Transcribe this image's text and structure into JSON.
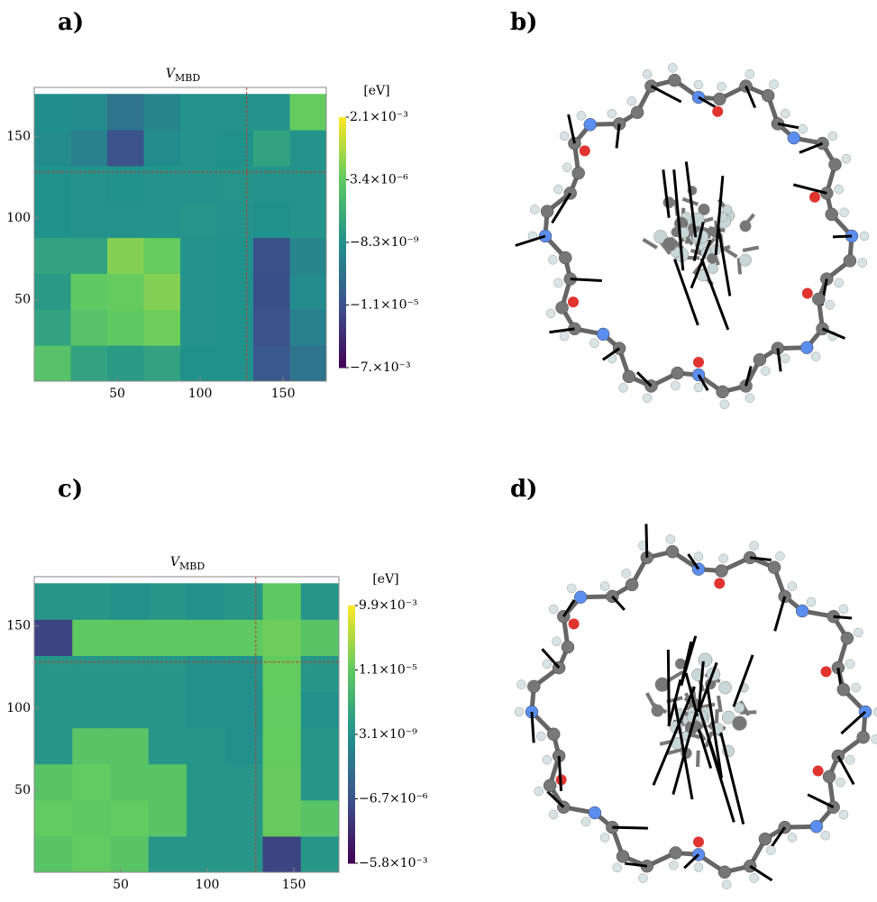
{
  "panel_labels": [
    "a)",
    "b)",
    "c)",
    "d)"
  ],
  "chart_data": [
    {
      "type": "heatmap",
      "title": "V",
      "title_sub": "MBD",
      "colorbar_label": "[eV]",
      "colormap": "viridis",
      "xlim": [
        0,
        176
      ],
      "ylim": [
        0,
        180
      ],
      "xticks": [
        50,
        100,
        150
      ],
      "yticks": [
        50,
        100,
        150
      ],
      "xbins": [
        0,
        22,
        44,
        66,
        88,
        110,
        132,
        154,
        176
      ],
      "ybins": [
        0,
        22,
        44,
        66,
        88,
        110,
        132,
        154,
        176
      ],
      "divider": 128,
      "divider_color": "#c0392b",
      "colorbar_ticks": [
        {
          "value": -0.007,
          "label": "−7.×10⁻³"
        },
        {
          "value": -1.1e-05,
          "label": "−1.1×10⁻⁵"
        },
        {
          "value": -8.3e-09,
          "label": "−8.3×10⁻⁹"
        },
        {
          "value": 3.4e-06,
          "label": "3.4×10⁻⁶"
        },
        {
          "value": 0.0021,
          "label": "2.1×10⁻³"
        }
      ],
      "values": [
        [
          3e-06,
          1e-06,
          5e-07,
          1e-06,
          -1e-08,
          -1e-08,
          -1e-05,
          -5e-06
        ],
        [
          1e-06,
          3e-06,
          1e-05,
          0.0002,
          1e-07,
          -5e-09,
          -2e-05,
          -3e-06
        ],
        [
          5e-07,
          1e-05,
          0.0001,
          0.0005,
          1e-07,
          -5e-09,
          -0.0003,
          -1e-06
        ],
        [
          1e-06,
          1e-06,
          0.0005,
          0.0001,
          1e-07,
          -5e-09,
          -0.0001,
          -2e-06
        ],
        [
          -1e-08,
          1e-07,
          1e-07,
          1e-07,
          2e-07,
          1e-07,
          -1e-08,
          1e-07
        ],
        [
          -1e-08,
          1e-07,
          -1e-08,
          1e-07,
          1e-07,
          2e-07,
          1e-07,
          1e-07
        ],
        [
          -1e-06,
          -3e-06,
          -2e-05,
          -1e-06,
          1e-07,
          -1e-08,
          1e-06,
          1e-07
        ],
        [
          -5e-07,
          -1e-06,
          -5e-06,
          -2e-06,
          1e-07,
          1e-07,
          1e-07,
          0.0001
        ]
      ]
    },
    {
      "type": "heatmap",
      "title": "V",
      "title_sub": "MBD",
      "colorbar_label": "[eV]",
      "colormap": "viridis",
      "xlim": [
        0,
        176
      ],
      "ylim": [
        0,
        180
      ],
      "xticks": [
        50,
        100,
        150
      ],
      "yticks": [
        50,
        100,
        150
      ],
      "xbins": [
        0,
        22,
        44,
        66,
        88,
        110,
        132,
        154,
        176
      ],
      "ybins": [
        0,
        22,
        44,
        66,
        88,
        110,
        132,
        154,
        176
      ],
      "divider": 128,
      "divider_color": "#c0392b",
      "colorbar_ticks": [
        {
          "value": -0.0058,
          "label": "−5.8×10⁻³"
        },
        {
          "value": -6.7e-06,
          "label": "−6.7×10⁻⁶"
        },
        {
          "value": 3.1e-09,
          "label": "3.1×10⁻⁹"
        },
        {
          "value": 1.1e-05,
          "label": "1.1×10⁻⁵"
        },
        {
          "value": 0.0099,
          "label": "9.9×10⁻³"
        }
      ],
      "values": [
        [
          1e-05,
          0.0002,
          1e-05,
          1e-06,
          1e-06,
          1e-06,
          -0.001,
          1e-06
        ],
        [
          0.0002,
          0.0001,
          0.0002,
          1e-05,
          1e-06,
          1e-06,
          0.0005,
          1e-05
        ],
        [
          1e-05,
          0.0002,
          1e-05,
          1e-05,
          1e-06,
          1e-06,
          0.0005,
          1e-06
        ],
        [
          1e-06,
          1e-05,
          1e-05,
          1e-06,
          1e-06,
          1e-07,
          0.0003,
          1e-06
        ],
        [
          1e-06,
          1e-06,
          1e-06,
          1e-06,
          1e-07,
          1e-07,
          0.0002,
          1e-07
        ],
        [
          1e-06,
          1e-06,
          1e-06,
          1e-06,
          1e-07,
          1e-07,
          0.0003,
          1e-06
        ],
        [
          -0.001,
          0.0001,
          0.0001,
          0.0001,
          0.0001,
          0.0001,
          0.001,
          1e-05
        ],
        [
          1e-06,
          1e-06,
          1e-07,
          1e-06,
          1e-07,
          1e-06,
          0.0001,
          1e-06
        ]
      ]
    }
  ]
}
